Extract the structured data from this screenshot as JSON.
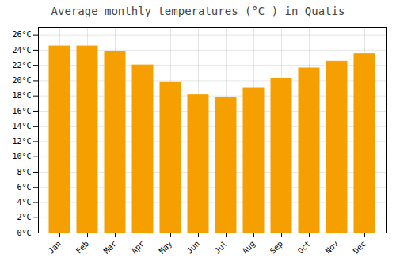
{
  "chart_data": {
    "type": "bar",
    "title": "Average monthly temperatures (°C ) in Quatis",
    "categories": [
      "Jan",
      "Feb",
      "Mar",
      "Apr",
      "May",
      "Jun",
      "Jul",
      "Aug",
      "Sep",
      "Oct",
      "Nov",
      "Dec"
    ],
    "values": [
      24.5,
      24.5,
      23.8,
      22.0,
      19.8,
      18.1,
      17.7,
      19.0,
      20.3,
      21.6,
      22.5,
      23.5
    ],
    "color": "#F5A000",
    "ylim": [
      0,
      27
    ],
    "yticks": [
      {
        "value": 0,
        "label": "0°C"
      },
      {
        "value": 2,
        "label": "2°C"
      },
      {
        "value": 4,
        "label": "4°C"
      },
      {
        "value": 6,
        "label": "6°C"
      },
      {
        "value": 8,
        "label": "8°C"
      },
      {
        "value": 10,
        "label": "10°C"
      },
      {
        "value": 12,
        "label": "12°C"
      },
      {
        "value": 14,
        "label": "14°C"
      },
      {
        "value": 16,
        "label": "16°C"
      },
      {
        "value": 18,
        "label": "18°C"
      },
      {
        "value": 20,
        "label": "20°C"
      },
      {
        "value": 22,
        "label": "22°C"
      },
      {
        "value": 24,
        "label": "24°C"
      },
      {
        "value": 26,
        "label": "26°C"
      }
    ],
    "grid": true
  }
}
